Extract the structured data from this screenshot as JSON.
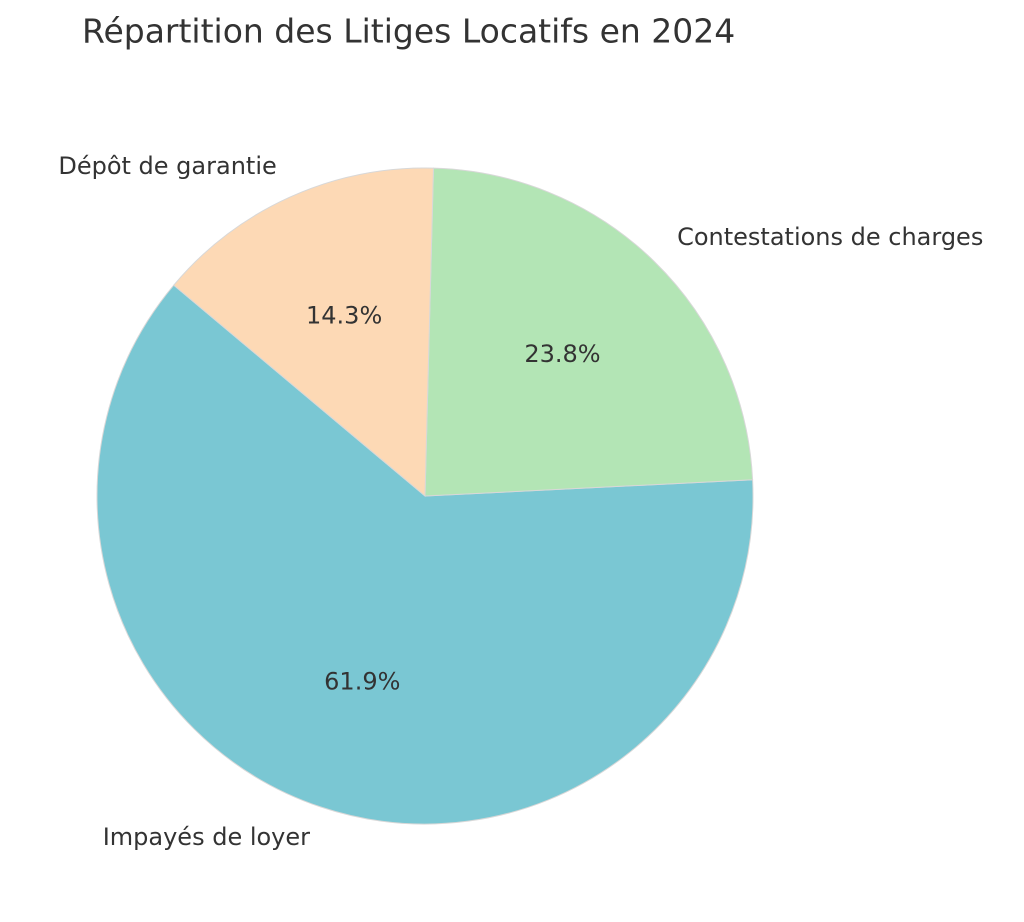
{
  "chart_data": {
    "type": "pie",
    "title": "Répartition des Litiges Locatifs en 2024",
    "categories": [
      "Impayés de loyer",
      "Contestations de charges",
      "Dépôt de garantie"
    ],
    "values": [
      61.9,
      23.8,
      14.3
    ],
    "value_labels": [
      "61.9%",
      "23.8%",
      "14.3%"
    ],
    "colors": [
      "#7ac7d3",
      "#b3e5b5",
      "#fdd9b5"
    ]
  }
}
